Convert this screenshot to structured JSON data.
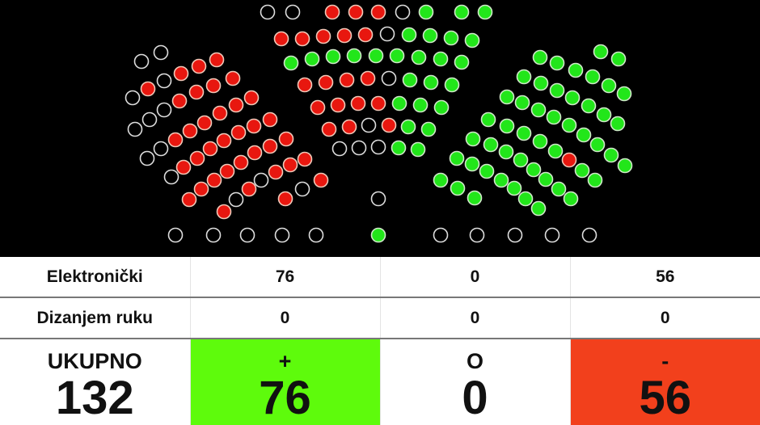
{
  "colors": {
    "yes": "#5efb0c",
    "no": "#f2401c",
    "abstain": "#ffffff",
    "seat_yes": "#22e61a",
    "seat_no": "#e8170f",
    "seat_empty_stroke": "#dddddd"
  },
  "seats": [
    "e",
    "e",
    "n",
    "n",
    "n",
    "e",
    "y",
    "y",
    "y",
    "n",
    "n",
    "n",
    "n",
    "n",
    "e",
    "y",
    "y",
    "y",
    "y",
    "y",
    "y",
    "y",
    "y",
    "y",
    "y",
    "y",
    "y",
    "y",
    "n",
    "n",
    "n",
    "n",
    "e",
    "y",
    "y",
    "y",
    "n",
    "n",
    "n",
    "n",
    "y",
    "y",
    "y",
    "n",
    "n",
    "e",
    "n",
    "y",
    "y",
    "e",
    "e",
    "e",
    "y",
    "y",
    "e",
    "y",
    "e",
    "e",
    "e",
    "e",
    "e",
    "e",
    "e",
    "e",
    "e",
    "e",
    "e",
    "e",
    "n",
    "n",
    "n",
    "e",
    "n",
    "e",
    "n",
    "n",
    "n",
    "n",
    "e",
    "e",
    "e",
    "n",
    "n",
    "n",
    "n",
    "n",
    "n",
    "e",
    "e",
    "n",
    "n",
    "n",
    "n",
    "n",
    "n",
    "n",
    "e",
    "n",
    "n",
    "n",
    "n",
    "n",
    "n",
    "n",
    "n",
    "e",
    "n",
    "e",
    "n",
    "n",
    "n",
    "n",
    "n",
    "e",
    "n",
    "y",
    "y",
    "y",
    "y",
    "y",
    "y",
    "y",
    "y",
    "y",
    "y",
    "y",
    "y",
    "y",
    "y",
    "y",
    "y",
    "y",
    "y",
    "y",
    "y",
    "y",
    "y",
    "y",
    "y",
    "y",
    "y",
    "y",
    "y",
    "y",
    "n",
    "y",
    "y",
    "y",
    "y",
    "y",
    "y",
    "y",
    "y",
    "y",
    "y",
    "y",
    "y",
    "y",
    "y",
    "y",
    "y",
    "y",
    "y",
    "y",
    "y"
  ],
  "table": {
    "rows": [
      {
        "label": "Elektronički",
        "yes": "76",
        "abstain": "0",
        "no": "56"
      },
      {
        "label": "Dizanjem ruku",
        "yes": "0",
        "abstain": "0",
        "no": "0"
      }
    ],
    "totals": {
      "label": "UKUPNO",
      "value": "132",
      "yes_symbol": "+",
      "yes": "76",
      "abstain_symbol": "O",
      "abstain": "0",
      "no_symbol": "-",
      "no": "56"
    }
  }
}
